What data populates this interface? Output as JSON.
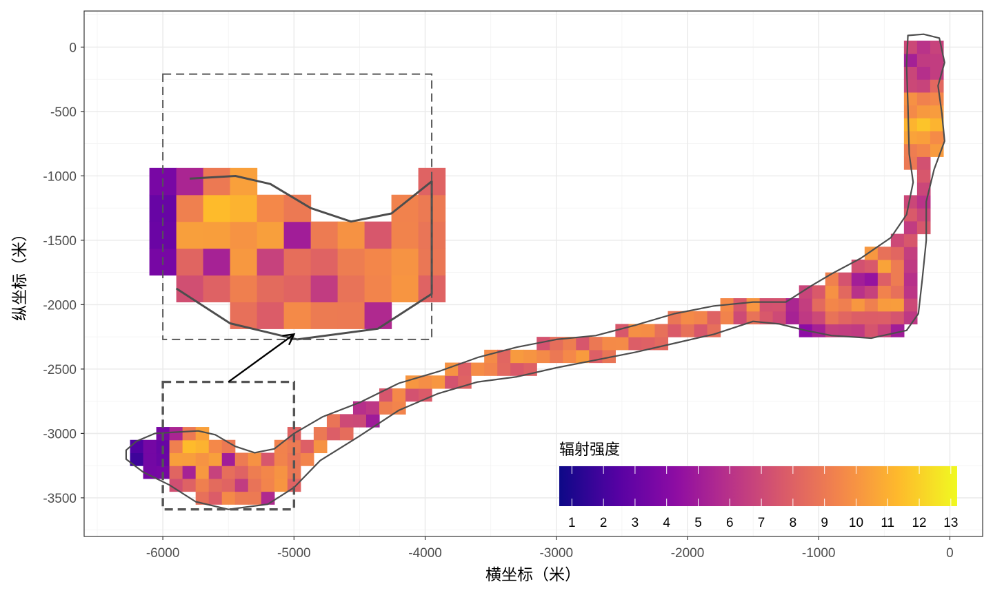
{
  "chart_data": {
    "type": "heatmap",
    "xlabel": "横坐标（米）",
    "ylabel": "纵坐标（米）",
    "xlim": [
      -6600,
      250
    ],
    "ylim": [
      -3800,
      280
    ],
    "x_ticks": [
      {
        "value": -6000,
        "label": "-6000"
      },
      {
        "value": -5000,
        "label": "-5000"
      },
      {
        "value": -4000,
        "label": "-4000"
      },
      {
        "value": -3000,
        "label": "-3000"
      },
      {
        "value": -2000,
        "label": "-2000"
      },
      {
        "value": -1000,
        "label": "-1000"
      },
      {
        "value": 0,
        "label": "0"
      }
    ],
    "y_ticks": [
      {
        "value": 0,
        "label": "0"
      },
      {
        "value": -500,
        "label": "-500"
      },
      {
        "value": -1000,
        "label": "-1000"
      },
      {
        "value": -1500,
        "label": "-1500"
      },
      {
        "value": -2000,
        "label": "-2000"
      },
      {
        "value": -2500,
        "label": "-2500"
      },
      {
        "value": -3000,
        "label": "-3000"
      },
      {
        "value": -3500,
        "label": "-3500"
      }
    ],
    "grid": true,
    "colorbar": {
      "title": "辐射强度",
      "palette": "plasma",
      "min": 0.6,
      "max": 13.2,
      "ticks": [
        "1",
        "2",
        "3",
        "4",
        "5",
        "6",
        "7",
        "8",
        "9",
        "10",
        "11",
        "12",
        "13"
      ],
      "position": "bottom-right"
    },
    "cell_size": 100,
    "corridor": {
      "halfwidth": 105,
      "centerline": [
        [
          -5420,
          -3440
        ],
        [
          -5050,
          -3300
        ],
        [
          -4800,
          -3020
        ],
        [
          -4500,
          -2880
        ],
        [
          -4200,
          -2720
        ],
        [
          -3900,
          -2600
        ],
        [
          -3600,
          -2500
        ],
        [
          -3300,
          -2420
        ],
        [
          -3000,
          -2370
        ],
        [
          -2700,
          -2330
        ],
        [
          -2400,
          -2260
        ],
        [
          -2100,
          -2180
        ],
        [
          -1800,
          -2120
        ],
        [
          -1500,
          -2060
        ],
        [
          -1250,
          -2030
        ],
        [
          -1000,
          -1950
        ]
      ]
    },
    "zone_lobe": {
      "x": [
        -6300,
        -5000
      ],
      "y": [
        -3600,
        -2960
      ]
    },
    "zone_bend": {
      "x": [
        -1100,
        -300
      ],
      "y": [
        -2280,
        -1380
      ]
    },
    "zone_arm": {
      "x": [
        -380,
        -20
      ],
      "y": [
        -1400,
        80
      ]
    },
    "boundary": [
      [
        -6280,
        -3130
      ],
      [
        -6200,
        -3060
      ],
      [
        -6060,
        -3000
      ],
      [
        -5900,
        -2990
      ],
      [
        -5730,
        -2980
      ],
      [
        -5600,
        -3010
      ],
      [
        -5450,
        -3100
      ],
      [
        -5300,
        -3150
      ],
      [
        -5150,
        -3120
      ],
      [
        -5000,
        -3000
      ],
      [
        -4780,
        -2870
      ],
      [
        -4500,
        -2760
      ],
      [
        -4200,
        -2610
      ],
      [
        -3900,
        -2520
      ],
      [
        -3600,
        -2410
      ],
      [
        -3300,
        -2330
      ],
      [
        -3000,
        -2270
      ],
      [
        -2700,
        -2240
      ],
      [
        -2400,
        -2160
      ],
      [
        -2100,
        -2070
      ],
      [
        -1800,
        -2010
      ],
      [
        -1500,
        -1980
      ],
      [
        -1250,
        -1980
      ],
      [
        -1050,
        -1850
      ],
      [
        -900,
        -1760
      ],
      [
        -680,
        -1640
      ],
      [
        -450,
        -1480
      ],
      [
        -330,
        -1300
      ],
      [
        -280,
        -1050
      ],
      [
        -310,
        -830
      ],
      [
        -320,
        -450
      ],
      [
        -330,
        -140
      ],
      [
        -320,
        90
      ],
      [
        -200,
        100
      ],
      [
        -80,
        70
      ],
      [
        -40,
        -120
      ],
      [
        -90,
        -300
      ],
      [
        -60,
        -520
      ],
      [
        -40,
        -730
      ],
      [
        -120,
        -950
      ],
      [
        -180,
        -1200
      ],
      [
        -180,
        -1500
      ],
      [
        -210,
        -1800
      ],
      [
        -240,
        -2070
      ],
      [
        -330,
        -2200
      ],
      [
        -600,
        -2260
      ],
      [
        -900,
        -2240
      ],
      [
        -1100,
        -2200
      ],
      [
        -1300,
        -2150
      ],
      [
        -1500,
        -2130
      ],
      [
        -1800,
        -2230
      ],
      [
        -2100,
        -2300
      ],
      [
        -2400,
        -2370
      ],
      [
        -2700,
        -2430
      ],
      [
        -3000,
        -2490
      ],
      [
        -3300,
        -2560
      ],
      [
        -3600,
        -2600
      ],
      [
        -3900,
        -2690
      ],
      [
        -4200,
        -2820
      ],
      [
        -4500,
        -3020
      ],
      [
        -4800,
        -3210
      ],
      [
        -5000,
        -3420
      ],
      [
        -5200,
        -3550
      ],
      [
        -5500,
        -3590
      ],
      [
        -5750,
        -3530
      ],
      [
        -5950,
        -3400
      ],
      [
        -6150,
        -3300
      ],
      [
        -6280,
        -3200
      ]
    ],
    "dashed_box_main": {
      "x": [
        -6000,
        -5000
      ],
      "y": [
        -3590,
        -2600
      ]
    },
    "inset": {
      "frame_x": [
        -6000,
        -3950
      ],
      "frame_y": [
        -2270,
        -210
      ],
      "arrow_from": [
        -5500,
        -2600
      ],
      "arrow_to": [
        -5000,
        -2230
      ]
    },
    "annotations": []
  }
}
